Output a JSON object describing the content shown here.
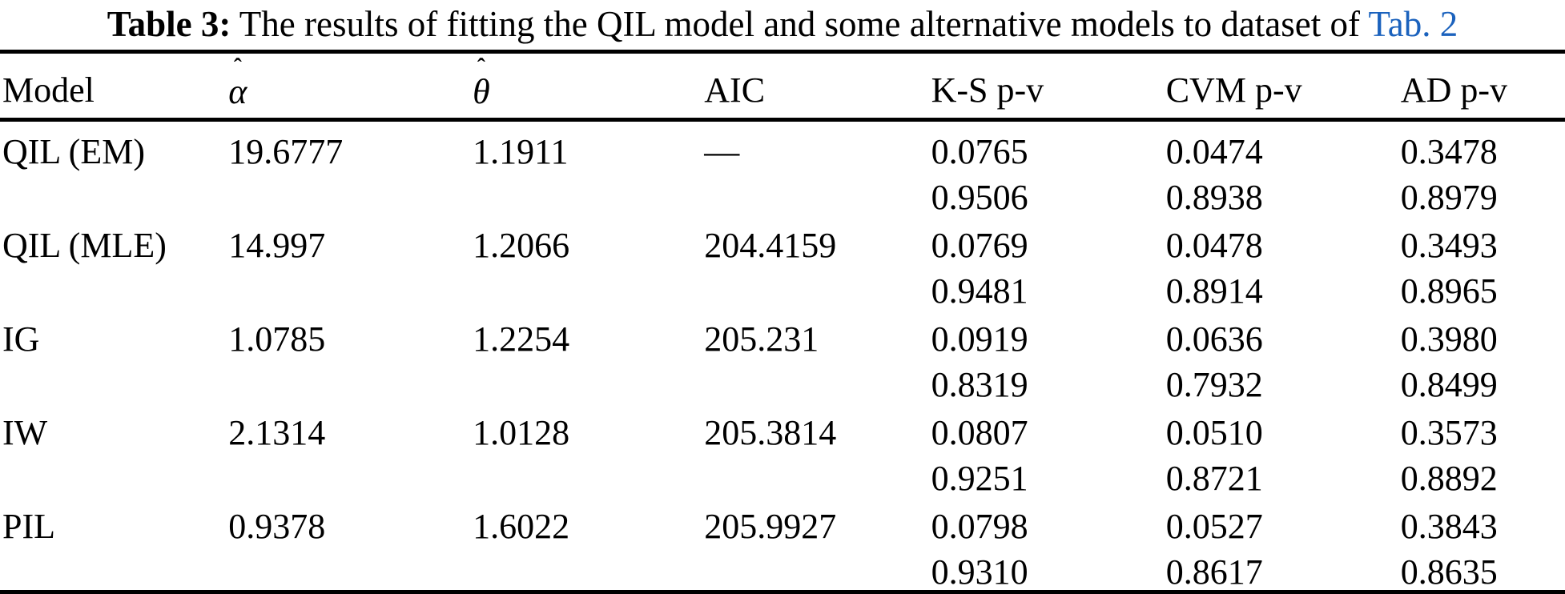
{
  "caption": {
    "label": "Table 3:",
    "text": "The results of fitting the QIL model and some alternative models to dataset of",
    "link_text": "Tab. 2",
    "link_color": "#1b62bd"
  },
  "table": {
    "headers": [
      {
        "label": "Model",
        "hat": ""
      },
      {
        "label": "α",
        "hat": "ˆ"
      },
      {
        "label": "θ",
        "hat": "ˆ"
      },
      {
        "label": "AIC",
        "hat": ""
      },
      {
        "label": "K-S p-v",
        "hat": ""
      },
      {
        "label": "CVM p-v",
        "hat": ""
      },
      {
        "label": "AD p-v",
        "hat": ""
      }
    ],
    "rows": [
      {
        "model": "QIL (EM)",
        "alpha": "19.6777",
        "theta": "1.1911",
        "aic": "—",
        "ks": [
          "0.0765",
          "0.9506"
        ],
        "cvm": [
          "0.0474",
          "0.8938"
        ],
        "ad": [
          "0.3478",
          "0.8979"
        ]
      },
      {
        "model": "QIL (MLE)",
        "alpha": "14.997",
        "theta": "1.2066",
        "aic": "204.4159",
        "ks": [
          "0.0769",
          "0.9481"
        ],
        "cvm": [
          "0.0478",
          "0.8914"
        ],
        "ad": [
          "0.3493",
          "0.8965"
        ]
      },
      {
        "model": "IG",
        "alpha": "1.0785",
        "theta": "1.2254",
        "aic": "205.231",
        "ks": [
          "0.0919",
          "0.8319"
        ],
        "cvm": [
          "0.0636",
          "0.7932"
        ],
        "ad": [
          "0.3980",
          "0.8499"
        ]
      },
      {
        "model": "IW",
        "alpha": "2.1314",
        "theta": "1.0128",
        "aic": "205.3814",
        "ks": [
          "0.0807",
          "0.9251"
        ],
        "cvm": [
          "0.0510",
          "0.8721"
        ],
        "ad": [
          "0.3573",
          "0.8892"
        ]
      },
      {
        "model": "PIL",
        "alpha": "0.9378",
        "theta": "1.6022",
        "aic": "205.9927",
        "ks": [
          "0.0798",
          "0.9310"
        ],
        "cvm": [
          "0.0527",
          "0.8617"
        ],
        "ad": [
          "0.3843",
          "0.8635"
        ]
      }
    ]
  }
}
